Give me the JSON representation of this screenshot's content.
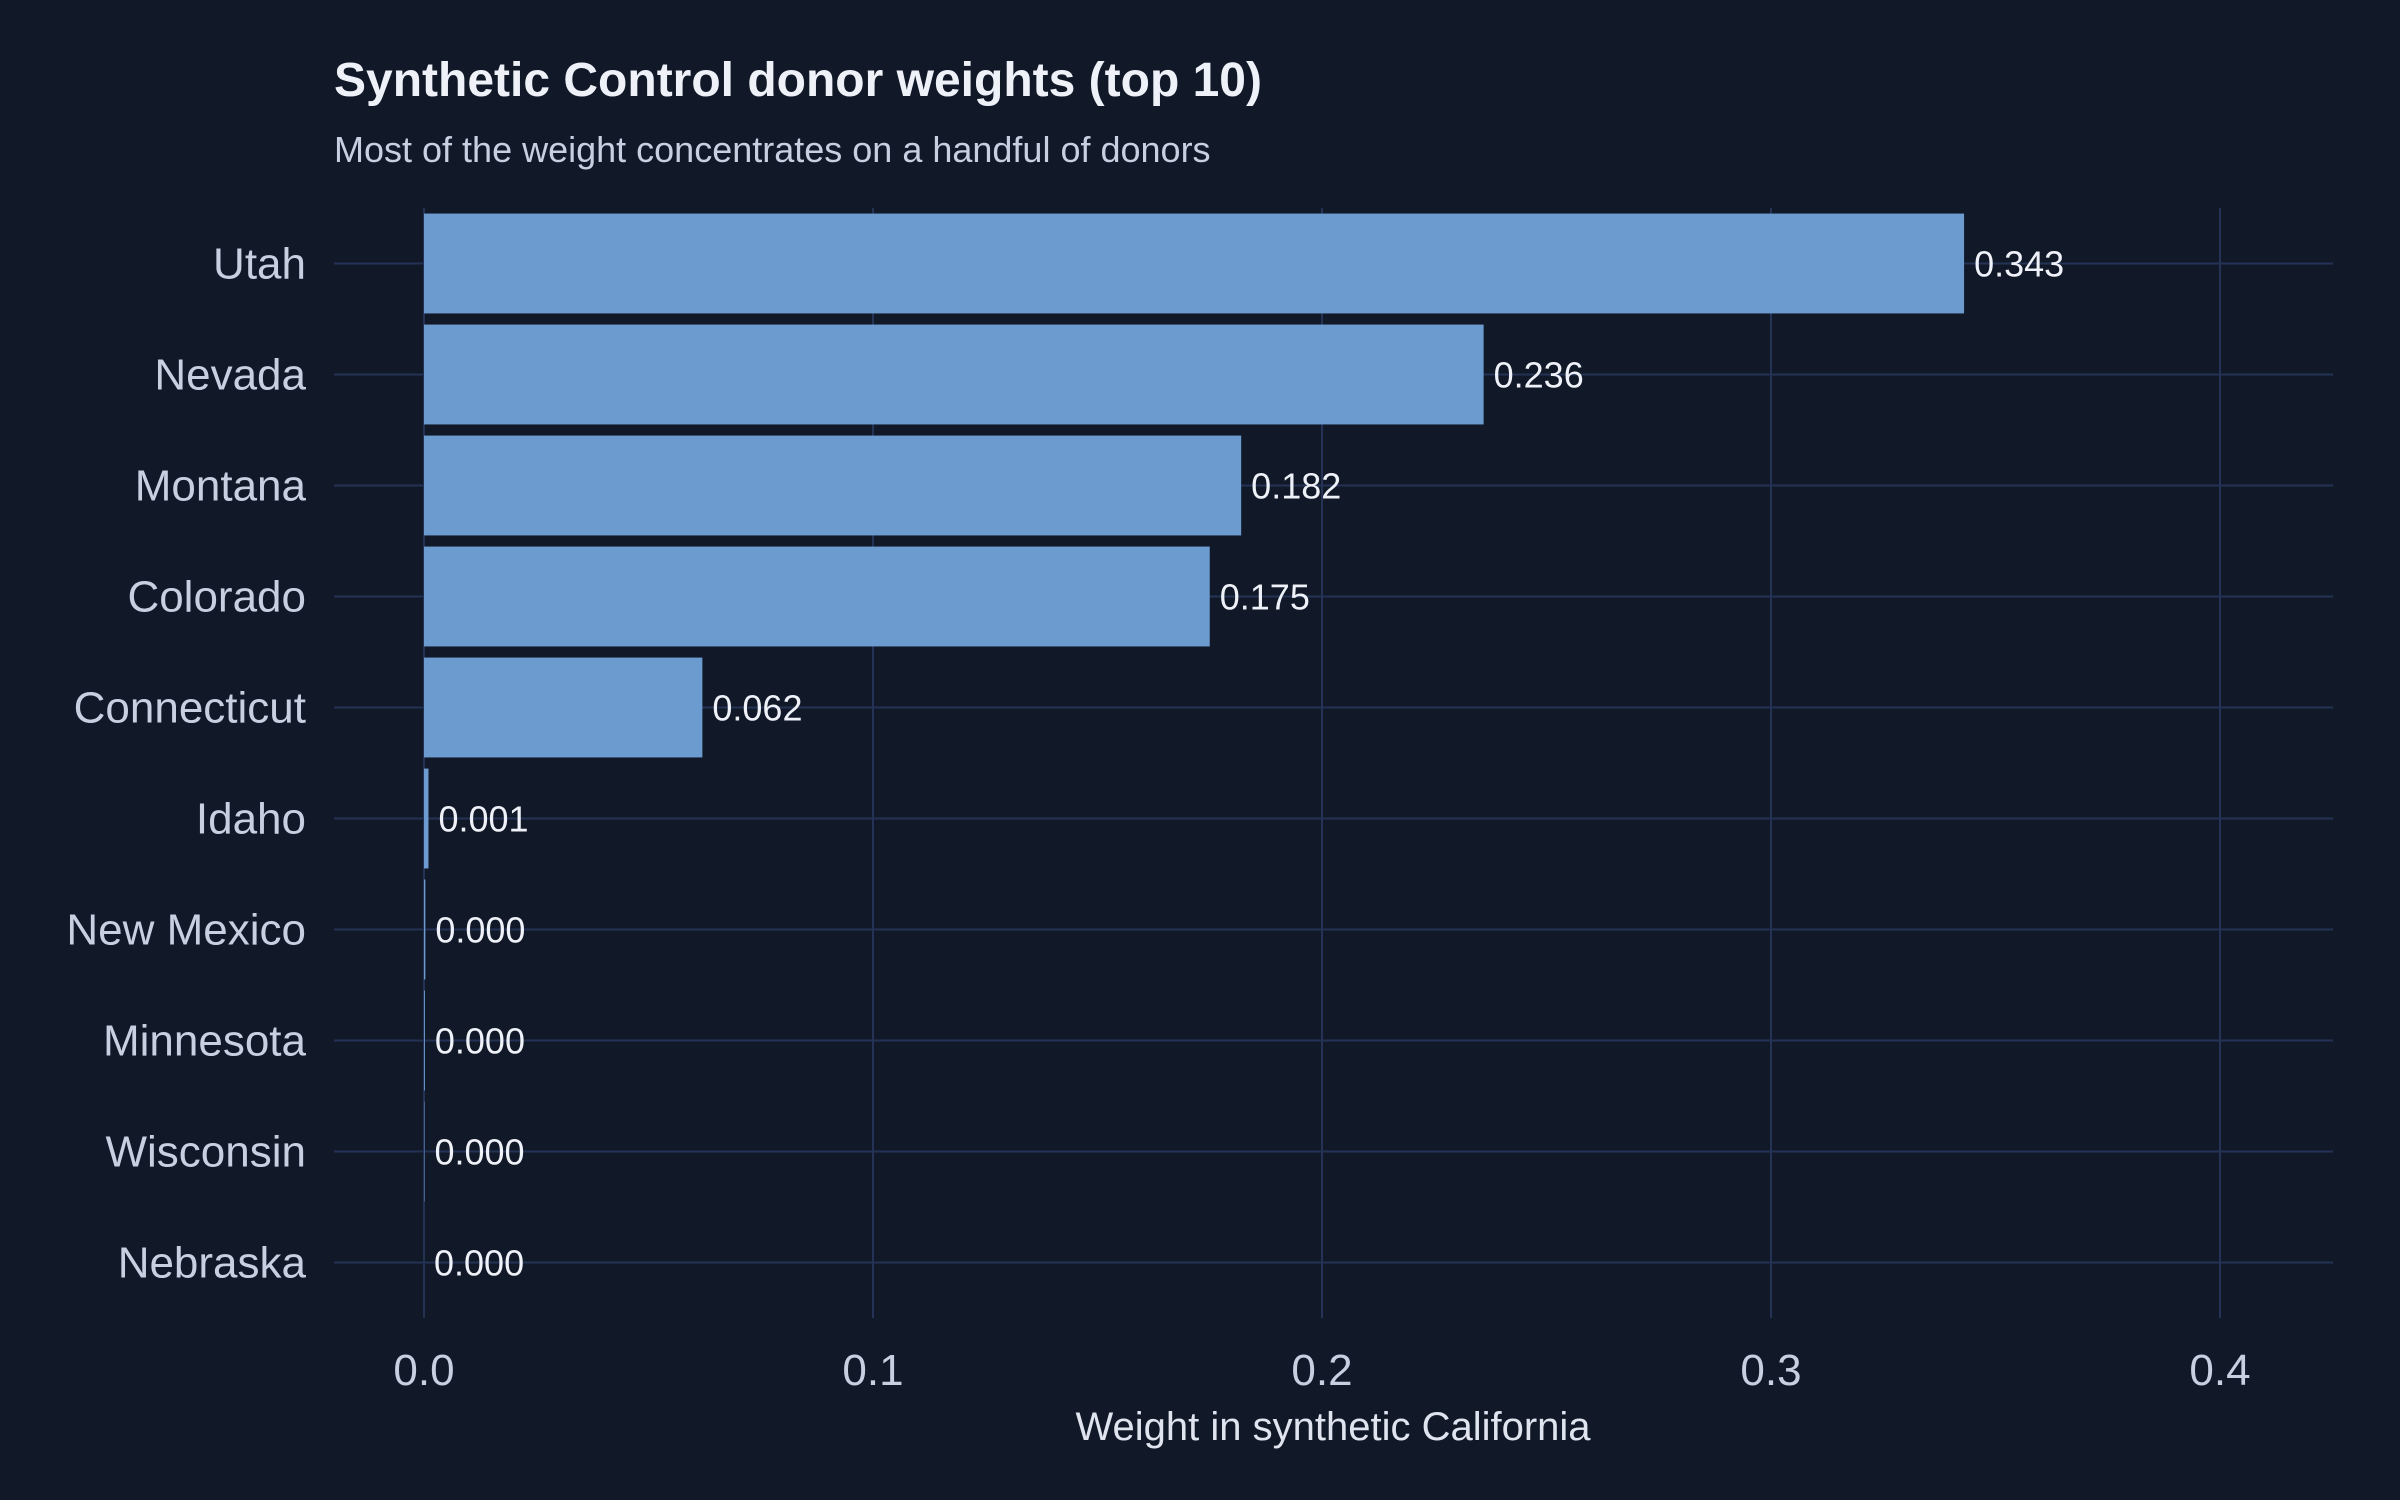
{
  "colors": {
    "background": "#111827",
    "bar": "#6b9bcf",
    "grid": "#243256",
    "text_primary": "#eef1f8",
    "text_secondary": "#c7cfe0"
  },
  "chart_data": {
    "type": "bar",
    "orientation": "horizontal",
    "title": "Synthetic Control donor weights (top 10)",
    "subtitle": "Most of the weight concentrates on a handful of donors",
    "xlabel": "Weight in synthetic California",
    "ylabel": "",
    "categories": [
      "Utah",
      "Nevada",
      "Montana",
      "Colorado",
      "Connecticut",
      "Idaho",
      "New Mexico",
      "Minnesota",
      "Wisconsin",
      "Nebraska"
    ],
    "values": [
      0.343,
      0.236,
      0.182,
      0.175,
      0.062,
      0.001,
      0.0003,
      0.0002,
      0.0001,
      0.0
    ],
    "value_labels": [
      "0.343",
      "0.236",
      "0.182",
      "0.175",
      "0.062",
      "0.001",
      "0.000",
      "0.000",
      "0.000",
      "0.000"
    ],
    "xlim": [
      -0.02,
      0.425
    ],
    "xticks": [
      0.0,
      0.1,
      0.2,
      0.3,
      0.4
    ],
    "xtick_labels": [
      "0.0",
      "0.1",
      "0.2",
      "0.3",
      "0.4"
    ],
    "grid": true,
    "legend": "none"
  }
}
